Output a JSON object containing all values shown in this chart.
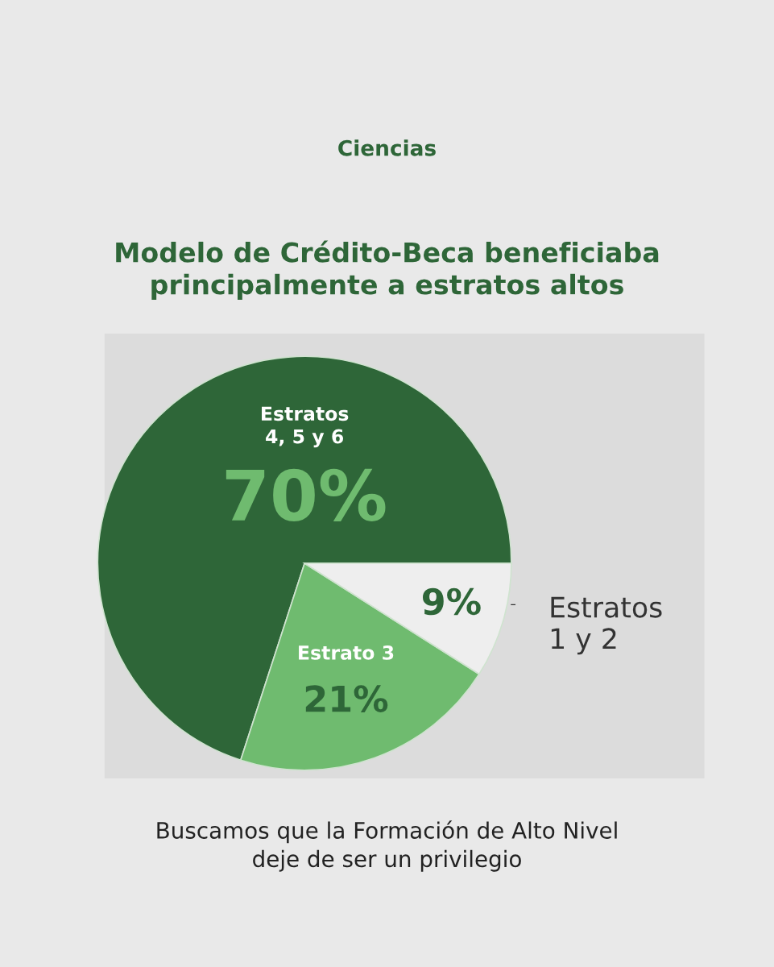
{
  "chart_data": {
    "type": "pie",
    "title": "Modelo de Crédito-Beca beneficiaba\nprincipalmente a estratos altos",
    "subtitle": "Ciencias",
    "categories": [
      "Estratos\n4, 5 y 6",
      "Estrato 3",
      "Estratos\n1 y 2"
    ],
    "values": [
      70,
      21,
      9
    ],
    "value_labels": [
      "70%",
      "21%",
      "9%"
    ],
    "colors": [
      "#2e6638",
      "#6fbb6f",
      "#eeeeee"
    ],
    "annotations": [
      "Buscamos que la Formación de Alto Nivel\ndeje de ser un privilegio"
    ]
  }
}
